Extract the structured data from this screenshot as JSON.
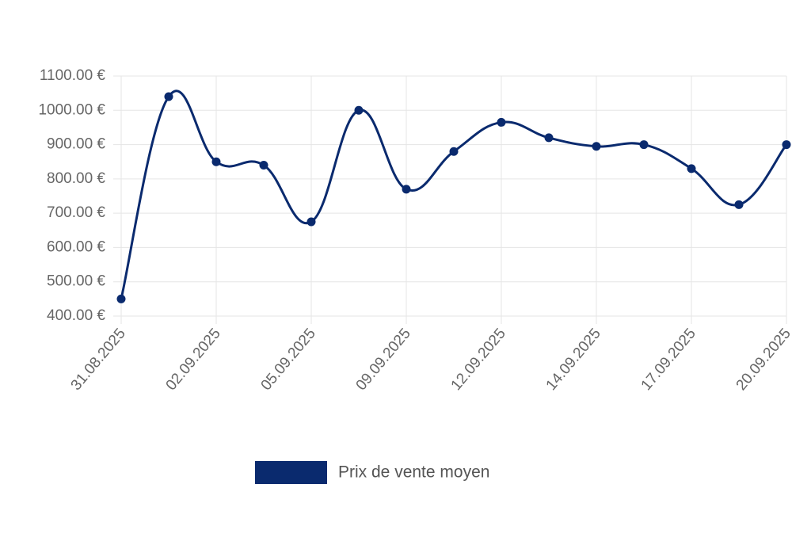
{
  "chart_data": {
    "type": "line",
    "categories": [
      "31.08.2025",
      null,
      "02.09.2025",
      null,
      "05.09.2025",
      null,
      "09.09.2025",
      null,
      "12.09.2025",
      null,
      "14.09.2025",
      null,
      "17.09.2025",
      null,
      "20.09.2025"
    ],
    "series": [
      {
        "name": "Prix de vente moyen",
        "color": "#0a2a6e",
        "values": [
          450,
          1040,
          850,
          840,
          675,
          1000,
          770,
          880,
          965,
          920,
          895,
          900,
          830,
          725,
          900
        ]
      }
    ],
    "ylim": [
      400,
      1100
    ],
    "yticks": [
      {
        "value": 400,
        "label": "400.00 €"
      },
      {
        "value": 500,
        "label": "500.00 €"
      },
      {
        "value": 600,
        "label": "600.00 €"
      },
      {
        "value": 700,
        "label": "700.00 €"
      },
      {
        "value": 800,
        "label": "800.00 €"
      },
      {
        "value": 900,
        "label": "900.00 €"
      },
      {
        "value": 1000,
        "label": "1000.00 €"
      },
      {
        "value": 1100,
        "label": "1100.00 €"
      }
    ],
    "grid": true,
    "legend": "bottom"
  }
}
